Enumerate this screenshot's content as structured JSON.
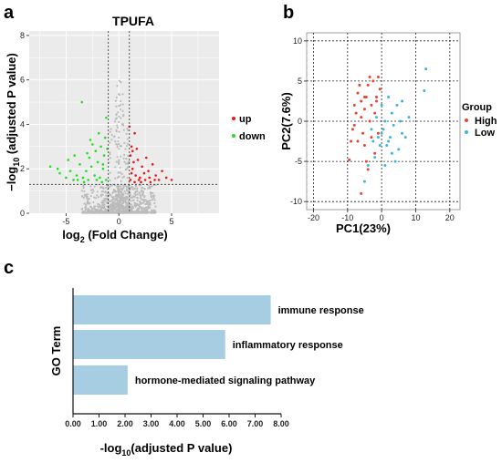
{
  "panels": {
    "a": "a",
    "b": "b",
    "c": "c"
  },
  "colors": {
    "up": "#e41a1c",
    "down": "#22dd22",
    "ns": "#bbbbbb",
    "high": "#e8432e",
    "low": "#3fb3e0",
    "bar": "#a6cde2",
    "panel_bg_a": "#ebebeb"
  },
  "chart_data": [
    {
      "type": "scatter",
      "title": "TPUFA",
      "xlabel_main": "log",
      "xlabel_sub": "2",
      "xlabel_rest": " (Fold Change)",
      "ylabel_pre": "−log",
      "ylabel_sub": "10",
      "ylabel_rest": " (adjusted P value)",
      "xlim": [
        -8.5,
        9.5
      ],
      "ylim": [
        0,
        8.2
      ],
      "xticks": [
        -5,
        0,
        5
      ],
      "yticks": [
        0,
        2,
        4,
        6,
        8
      ],
      "fc_cutoffs": [
        -1,
        1
      ],
      "p_cutoff": 1.3,
      "legend": [
        {
          "name": "up",
          "color_key": "up"
        },
        {
          "name": "down",
          "color_key": "down"
        }
      ],
      "highlight_points": {
        "up": [
          [
            1.1,
            1.5
          ],
          [
            1.3,
            2.0
          ],
          [
            1.5,
            1.4
          ],
          [
            1.8,
            2.4
          ],
          [
            2.0,
            1.6
          ],
          [
            2.2,
            2.1
          ],
          [
            2.5,
            1.5
          ],
          [
            2.8,
            1.9
          ],
          [
            3.0,
            1.4
          ],
          [
            3.2,
            2.2
          ],
          [
            3.5,
            1.7
          ],
          [
            3.8,
            1.5
          ],
          [
            4.1,
            1.9
          ],
          [
            1.2,
            1.8
          ],
          [
            1.6,
            1.7
          ],
          [
            2.4,
            1.8
          ],
          [
            2.9,
            1.6
          ],
          [
            1.4,
            2.3
          ],
          [
            1.9,
            1.5
          ],
          [
            2.6,
            2.5
          ],
          [
            3.4,
            1.5
          ],
          [
            1.1,
            2.6
          ],
          [
            1.7,
            2.9
          ],
          [
            1.2,
            3.0
          ],
          [
            1.5,
            3.6
          ],
          [
            1.0,
            3.9
          ],
          [
            1.3,
            2.8
          ],
          [
            2.1,
            1.4
          ],
          [
            4.5,
            1.6
          ],
          [
            5.0,
            1.5
          ]
        ],
        "down": [
          [
            -1.2,
            1.5
          ],
          [
            -1.5,
            2.0
          ],
          [
            -1.8,
            1.6
          ],
          [
            -2.0,
            2.3
          ],
          [
            -2.3,
            1.7
          ],
          [
            -2.6,
            2.1
          ],
          [
            -2.9,
            1.5
          ],
          [
            -3.1,
            1.9
          ],
          [
            -3.4,
            1.6
          ],
          [
            -3.7,
            2.2
          ],
          [
            -4.0,
            1.7
          ],
          [
            -4.3,
            1.5
          ],
          [
            -4.6,
            1.9
          ],
          [
            -5.0,
            1.6
          ],
          [
            -5.6,
            1.8
          ],
          [
            -1.4,
            2.6
          ],
          [
            -1.7,
            3.0
          ],
          [
            -1.3,
            3.4
          ],
          [
            -2.2,
            2.8
          ],
          [
            -1.1,
            2.9
          ],
          [
            -2.8,
            2.5
          ],
          [
            -3.3,
            1.4
          ],
          [
            -1.6,
            1.4
          ],
          [
            -2.1,
            1.5
          ],
          [
            -3.9,
            1.5
          ],
          [
            -2.5,
            3.1
          ],
          [
            -1.9,
            3.6
          ],
          [
            -1.2,
            4.3
          ],
          [
            -3.0,
            2.7
          ],
          [
            -4.8,
            2.4
          ],
          [
            -5.8,
            2.0
          ],
          [
            -6.5,
            2.1
          ],
          [
            -3.5,
            5.0
          ],
          [
            -2.7,
            3.3
          ],
          [
            -1.5,
            2.2
          ],
          [
            -4.2,
            2.6
          ]
        ]
      }
    },
    {
      "type": "scatter",
      "title": "",
      "xlabel": "PC1(23%)",
      "ylabel": "PC2(7.6%)",
      "xlim": [
        -22,
        23
      ],
      "ylim": [
        -11,
        11
      ],
      "xticks": [
        -20,
        -10,
        0,
        10,
        20
      ],
      "yticks": [
        -10,
        -5,
        0,
        5,
        10
      ],
      "legend_title": "Group",
      "series": [
        {
          "name": "High",
          "color_key": "high",
          "points": [
            [
              -9.5,
              -4.8
            ],
            [
              -9,
              -2.5
            ],
            [
              -8.5,
              -1
            ],
            [
              -8,
              2
            ],
            [
              -7.5,
              1
            ],
            [
              -7,
              3.5
            ],
            [
              -6.5,
              4.5
            ],
            [
              -6,
              2.5
            ],
            [
              -6,
              0.5
            ],
            [
              -5.5,
              -1.5
            ],
            [
              -5,
              -3
            ],
            [
              -5,
              1.5
            ],
            [
              -4.5,
              3
            ],
            [
              -4,
              4.5
            ],
            [
              -4,
              -6
            ],
            [
              -3.5,
              0
            ],
            [
              -3,
              2
            ],
            [
              -3,
              -2
            ],
            [
              -2.5,
              5
            ],
            [
              -2,
              1
            ],
            [
              -2,
              -4
            ],
            [
              -1.5,
              3
            ],
            [
              -1,
              5.5
            ],
            [
              -1,
              -1.5
            ],
            [
              -0.5,
              4
            ],
            [
              -6,
              -9
            ],
            [
              -7,
              -2.5
            ],
            [
              -8,
              -0.5
            ],
            [
              -5,
              3
            ],
            [
              -3.5,
              5.5
            ],
            [
              -1.5,
              2.5
            ],
            [
              -4.5,
              -5
            ]
          ]
        },
        {
          "name": "Low",
          "color_key": "low",
          "points": [
            [
              -5,
              -7.5
            ],
            [
              -4,
              -5.5
            ],
            [
              -3,
              -1
            ],
            [
              -2,
              -4.5
            ],
            [
              -1,
              -2
            ],
            [
              -0.5,
              -3
            ],
            [
              0,
              2
            ],
            [
              0.5,
              -1
            ],
            [
              1,
              0
            ],
            [
              1.5,
              -3
            ],
            [
              2,
              3
            ],
            [
              2.5,
              -2
            ],
            [
              3,
              1
            ],
            [
              3.5,
              -0.5
            ],
            [
              4,
              -5
            ],
            [
              4.5,
              2
            ],
            [
              5,
              -3.5
            ],
            [
              5.5,
              0
            ],
            [
              6,
              -1.5
            ],
            [
              6,
              2.5
            ],
            [
              7,
              -2
            ],
            [
              8,
              0.5
            ],
            [
              13,
              6.5
            ],
            [
              12.5,
              3.8
            ],
            [
              3,
              -4
            ],
            [
              -1.5,
              0.5
            ],
            [
              1,
              -5.5
            ],
            [
              2,
              -2.5
            ],
            [
              0,
              -1.5
            ],
            [
              -2.5,
              -2.5
            ]
          ]
        }
      ]
    },
    {
      "type": "bar",
      "orientation": "horizontal",
      "categories": [
        "immune response",
        "inflammatory response",
        "hormone-mediated signaling pathway"
      ],
      "values": [
        7.6,
        5.85,
        2.1
      ],
      "xlabel_pre": "-log",
      "xlabel_sub": "10",
      "xlabel_rest": "(adjusted P value)",
      "ylabel": "GO Term",
      "xlim": [
        0,
        8
      ],
      "xticks": [
        "0.00",
        "1.00",
        "2.00",
        "3.00",
        "4.00",
        "5.00",
        "6.00",
        "7.00",
        "8.00"
      ]
    }
  ]
}
